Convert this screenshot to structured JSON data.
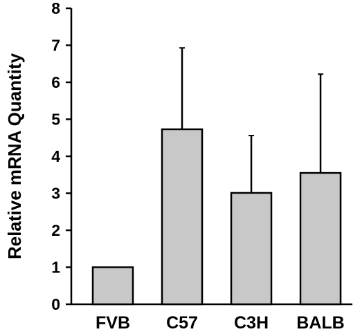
{
  "chart_data": {
    "type": "bar",
    "title": "",
    "xlabel": "",
    "ylabel": "Relative mRNA Quantity",
    "categories": [
      "FVB",
      "C57",
      "C3H",
      "BALB"
    ],
    "values": [
      1.0,
      4.73,
      3.01,
      3.55
    ],
    "error_upper": [
      0.0,
      2.2,
      1.55,
      2.67
    ],
    "ylim": [
      0,
      8
    ],
    "yticks": [
      "0",
      "1",
      "2",
      "3",
      "4",
      "5",
      "6",
      "7",
      "8"
    ],
    "grid": false,
    "legend": "none",
    "bar_color": "#c8c8c8",
    "edge_color": "#000000"
  }
}
